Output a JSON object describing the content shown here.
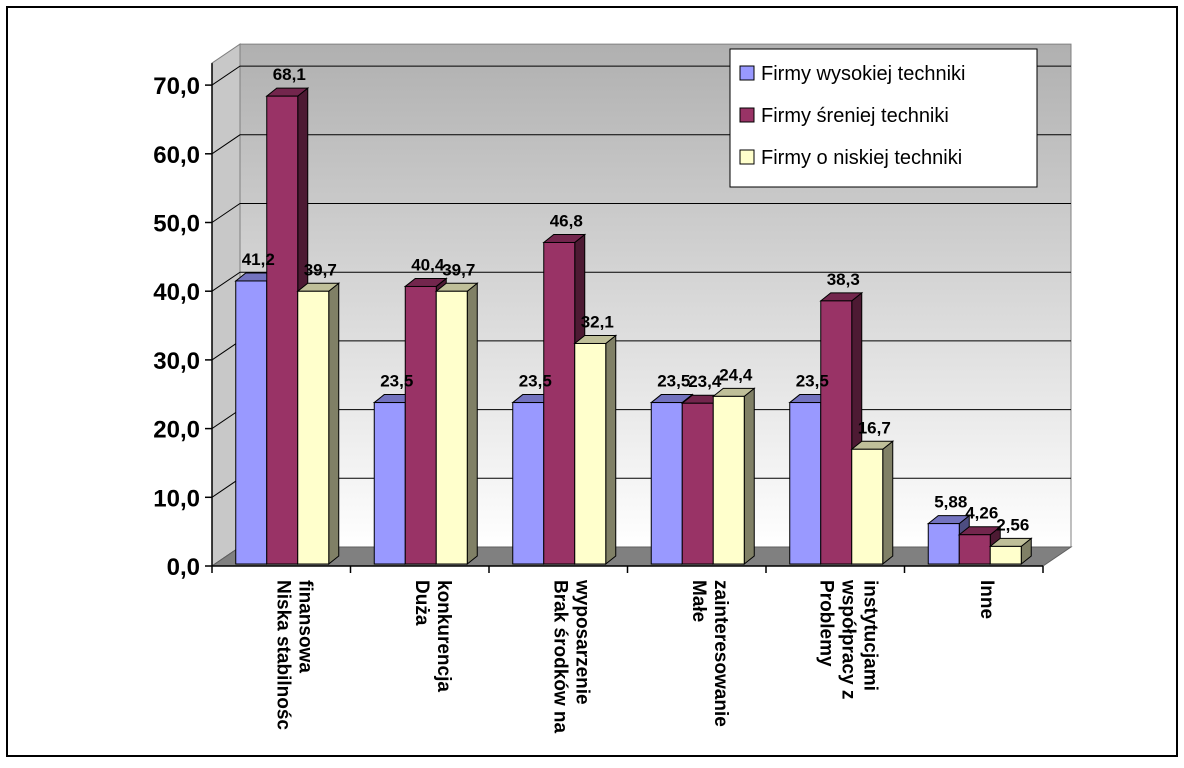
{
  "chart_data": {
    "type": "bar",
    "title": "",
    "xlabel": "",
    "ylabel": "",
    "categories": [
      [
        "Niska stabilnośc",
        "finansowa"
      ],
      [
        "Duża",
        "konkurencja"
      ],
      [
        "Brak środków na",
        "wyposarzenie"
      ],
      [
        "Małe",
        "zainteresowanie"
      ],
      [
        "Problemy",
        "współpracy z",
        "instytucjami"
      ],
      [
        "Inne"
      ]
    ],
    "series": [
      {
        "name": "Firmy wysokiej techniki",
        "color": "#9999ff",
        "values": [
          41.2,
          23.5,
          23.5,
          23.5,
          23.5,
          5.88
        ],
        "value_labels": [
          "41,2",
          "23,5",
          "23,5",
          "23,5",
          "23,5",
          "5,88"
        ]
      },
      {
        "name": "Firmy śreniej techniki",
        "color": "#993366",
        "values": [
          68.1,
          40.4,
          46.8,
          23.4,
          38.3,
          4.26
        ],
        "value_labels": [
          "68,1",
          "40,4",
          "46,8",
          "23,4",
          "38,3",
          "4,26"
        ]
      },
      {
        "name": "Firmy o niskiej techniki",
        "color": "#ffffcc",
        "values": [
          39.7,
          39.7,
          32.1,
          24.4,
          16.7,
          2.56
        ],
        "value_labels": [
          "39,7",
          "39,7",
          "32,1",
          "24,4",
          "16,7",
          "2,56"
        ]
      }
    ],
    "ylim": [
      0,
      70
    ],
    "y_ticks": [
      "0,0",
      "10,0",
      "20,0",
      "30,0",
      "40,0",
      "50,0",
      "60,0",
      "70,0"
    ],
    "grid": true,
    "legend_position": "top-right",
    "style": "3d-clustered-bar",
    "wall_gradient": [
      "#b0b0b0",
      "#ffffff"
    ],
    "floor_color": "#808080"
  }
}
